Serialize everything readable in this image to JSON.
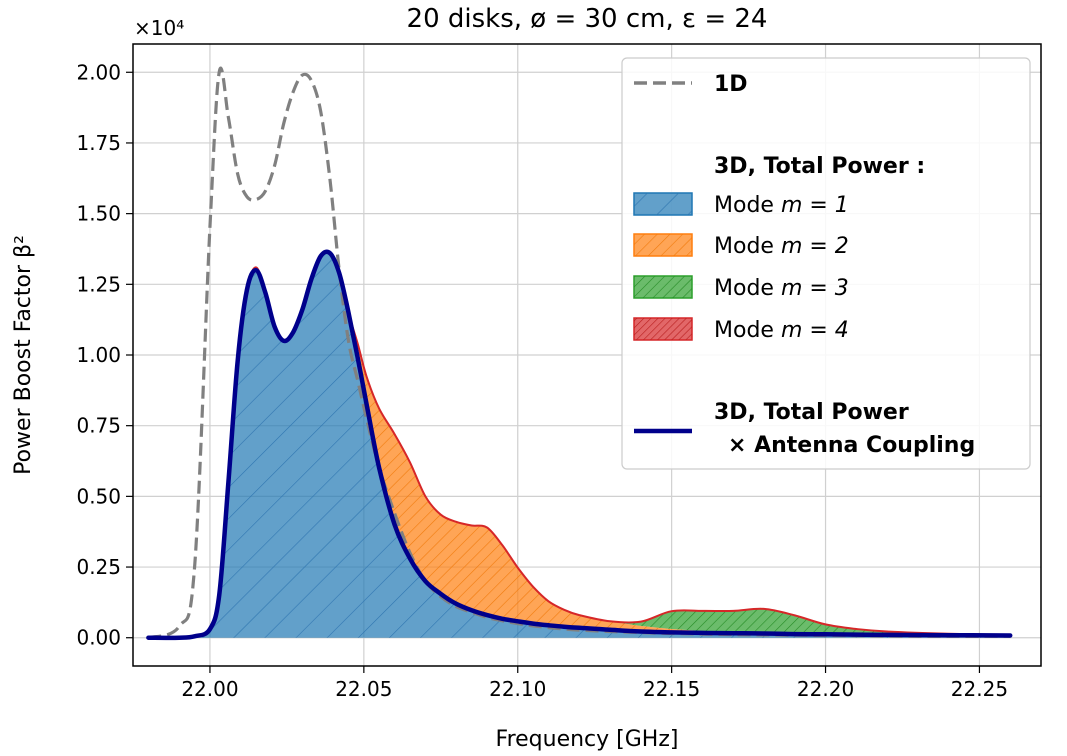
{
  "chart_data": {
    "type": "area",
    "title": "20 disks, ø = 30 cm, ε = 24",
    "xlabel": "Frequency [GHz]",
    "ylabel": "Power Boost Factor β²",
    "y_scale_label": "×10⁴",
    "xlim": [
      21.975,
      22.27
    ],
    "ylim": [
      -0.1,
      2.1
    ],
    "xticks": [
      22.0,
      22.05,
      22.1,
      22.15,
      22.2,
      22.25
    ],
    "xtick_labels": [
      "22.00",
      "22.05",
      "22.10",
      "22.15",
      "22.20",
      "22.25"
    ],
    "yticks": [
      0.0,
      0.25,
      0.5,
      0.75,
      1.0,
      1.25,
      1.5,
      1.75,
      2.0
    ],
    "ytick_labels": [
      "0.00",
      "0.25",
      "0.50",
      "0.75",
      "1.00",
      "1.25",
      "1.50",
      "1.75",
      "2.00"
    ],
    "grid": true,
    "legend_position": "top-right",
    "x": [
      21.98,
      21.99,
      21.995,
      22.0,
      22.003,
      22.006,
      22.009,
      22.012,
      22.015,
      22.018,
      22.021,
      22.024,
      22.027,
      22.03,
      22.033,
      22.036,
      22.039,
      22.042,
      22.045,
      22.048,
      22.051,
      22.055,
      22.06,
      22.065,
      22.07,
      22.075,
      22.08,
      22.085,
      22.09,
      22.095,
      22.1,
      22.105,
      22.11,
      22.115,
      22.12,
      22.13,
      22.14,
      22.15,
      22.16,
      22.17,
      22.18,
      22.19,
      22.2,
      22.21,
      22.22,
      22.24,
      22.26
    ],
    "series": [
      {
        "name": "1D",
        "style": "dashed",
        "color": "#808080",
        "values": [
          0.0,
          0.04,
          0.25,
          1.45,
          2.0,
          1.84,
          1.64,
          1.56,
          1.55,
          1.58,
          1.67,
          1.82,
          1.93,
          1.99,
          1.97,
          1.86,
          1.62,
          1.3,
          1.05,
          0.91,
          0.77,
          0.6,
          0.44,
          0.3,
          0.2,
          0.145,
          0.11,
          0.09,
          0.072,
          0.06,
          0.05,
          0.042,
          0.036,
          0.031,
          0.027,
          0.022,
          0.018,
          0.015,
          0.013,
          0.011,
          0.01,
          0.009,
          0.008,
          0.007,
          0.006,
          0.005,
          0.005
        ]
      },
      {
        "name": "Mode m = 1",
        "style": "area",
        "color": "#1f77b4",
        "values": [
          0.0,
          0.0,
          0.005,
          0.03,
          0.15,
          0.55,
          0.98,
          1.23,
          1.3,
          1.22,
          1.1,
          1.05,
          1.08,
          1.16,
          1.27,
          1.35,
          1.36,
          1.29,
          1.15,
          0.99,
          0.82,
          0.6,
          0.4,
          0.28,
          0.2,
          0.155,
          0.12,
          0.097,
          0.08,
          0.067,
          0.058,
          0.05,
          0.044,
          0.039,
          0.035,
          0.028,
          0.022,
          0.019,
          0.017,
          0.016,
          0.015,
          0.013,
          0.012,
          0.011,
          0.01,
          0.009,
          0.008
        ]
      },
      {
        "name": "Mode m = 2",
        "style": "area",
        "color": "#ff7f0e",
        "values": [
          0.0,
          0.0,
          0.0,
          0.0,
          0.0,
          0.0,
          0.0,
          0.0,
          0.01,
          0.0,
          0.0,
          0.0,
          0.0,
          0.0,
          0.0,
          0.0,
          0.0,
          0.0,
          0.0,
          0.05,
          0.1,
          0.21,
          0.32,
          0.34,
          0.3,
          0.28,
          0.29,
          0.3,
          0.31,
          0.26,
          0.19,
          0.13,
          0.085,
          0.06,
          0.045,
          0.03,
          0.02,
          0.012,
          0.007,
          0.004,
          0.002,
          0.001,
          0.0,
          0.0,
          0.0,
          0.0,
          0.0
        ]
      },
      {
        "name": "Mode m = 3",
        "style": "area",
        "color": "#2ca02c",
        "values": [
          0.0,
          0.0,
          0.0,
          0.0,
          0.0,
          0.0,
          0.0,
          0.0,
          0.0,
          0.0,
          0.0,
          0.0,
          0.0,
          0.0,
          0.0,
          0.0,
          0.0,
          0.0,
          0.0,
          0.0,
          0.0,
          0.0,
          0.0,
          0.0,
          0.0,
          0.0,
          0.0,
          0.0,
          0.0,
          0.0,
          0.0,
          0.0,
          0.0,
          0.0,
          0.0,
          0.0,
          0.015,
          0.063,
          0.071,
          0.075,
          0.085,
          0.065,
          0.035,
          0.02,
          0.012,
          0.005,
          0.002
        ]
      },
      {
        "name": "Mode m = 4",
        "style": "area",
        "color": "#d62728",
        "values": [
          0.0,
          0.0,
          0.0,
          0.0,
          0.0,
          0.0,
          0.0,
          0.0,
          0.0,
          0.0,
          0.0,
          0.0,
          0.0,
          0.0,
          0.0,
          0.0,
          0.0,
          0.0,
          0.0,
          0.0,
          0.0,
          0.0,
          0.0,
          0.0,
          0.0,
          0.0,
          0.0,
          0.0,
          0.0,
          0.0,
          0.0,
          0.0,
          0.0,
          0.0,
          0.0,
          0.0,
          0.0,
          0.0,
          0.0,
          0.0,
          0.0,
          0.0,
          0.0,
          0.0,
          0.0,
          0.0,
          0.0
        ]
      },
      {
        "name": "3D, Total Power × Antenna Coupling",
        "style": "line",
        "color": "#00008b",
        "values": [
          0.0,
          0.0,
          0.005,
          0.03,
          0.15,
          0.55,
          0.98,
          1.23,
          1.3,
          1.22,
          1.1,
          1.05,
          1.08,
          1.16,
          1.27,
          1.35,
          1.36,
          1.29,
          1.15,
          0.99,
          0.82,
          0.6,
          0.4,
          0.28,
          0.2,
          0.155,
          0.12,
          0.097,
          0.08,
          0.067,
          0.058,
          0.05,
          0.044,
          0.039,
          0.035,
          0.028,
          0.022,
          0.019,
          0.017,
          0.016,
          0.015,
          0.013,
          0.012,
          0.011,
          0.01,
          0.009,
          0.008
        ]
      }
    ]
  },
  "legend": {
    "one_d": "1D",
    "header_3d": "3D,  Total Power :",
    "mode_prefix": "Mode ",
    "mode1": "m = 1",
    "mode2": "m = 2",
    "mode3": "m = 3",
    "mode4": "m = 4",
    "coupling_line1": "3D,  Total Power",
    "coupling_line2": "×  Antenna Coupling"
  },
  "colors": {
    "mode1": "#1f77b4",
    "mode2": "#ff7f0e",
    "mode3": "#2ca02c",
    "mode4": "#d62728",
    "coupling": "#00008b",
    "one_d": "#808080"
  }
}
